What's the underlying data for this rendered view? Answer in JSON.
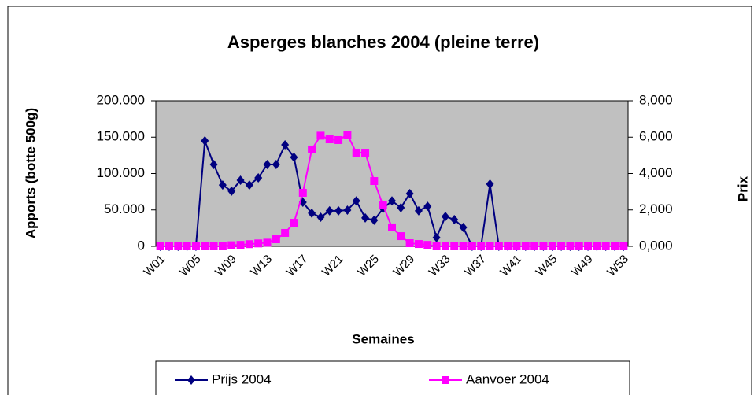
{
  "chart_data": {
    "type": "line",
    "title": "Asperges blanches 2004 (pleine terre)",
    "y_label": "Apports (botte 500g)",
    "y2_label": "Prix",
    "x_label": "Semaines",
    "categories": [
      "W01",
      null,
      null,
      null,
      "W05",
      null,
      null,
      null,
      "W09",
      null,
      null,
      null,
      "W13",
      null,
      null,
      null,
      "W17",
      null,
      null,
      null,
      "W21",
      null,
      null,
      null,
      "W25",
      null,
      null,
      null,
      "W29",
      null,
      null,
      null,
      "W33",
      null,
      null,
      null,
      "W37",
      null,
      null,
      null,
      "W41",
      null,
      null,
      null,
      "W45",
      null,
      null,
      null,
      "W49",
      null,
      null,
      null,
      "W53"
    ],
    "series": [
      {
        "name": "Prijs 2004",
        "color": "#000080",
        "marker": "diamond",
        "axis": "y2",
        "values": [
          0,
          0,
          0,
          0,
          0,
          5.8,
          4.5,
          3.37,
          3.03,
          3.63,
          3.37,
          3.76,
          4.5,
          4.5,
          5.58,
          4.89,
          2.42,
          1.82,
          1.6,
          1.95,
          1.95,
          1.99,
          2.5,
          1.56,
          1.43,
          2.08,
          2.5,
          2.12,
          2.9,
          1.95,
          2.2,
          0.48,
          1.64,
          1.47,
          1.04,
          0,
          0,
          3.42,
          0,
          0,
          0,
          0,
          0,
          0,
          0,
          0,
          0,
          0,
          0,
          0,
          0,
          0,
          0
        ]
      },
      {
        "name": "Aanvoer 2004",
        "color": "#ff00ff",
        "marker": "square",
        "axis": "y",
        "values": [
          0,
          0,
          0,
          0,
          0,
          0,
          0,
          0,
          1500,
          2000,
          3000,
          4000,
          5000,
          9700,
          18400,
          32400,
          73500,
          133000,
          152000,
          147000,
          146000,
          153500,
          128600,
          128600,
          89700,
          56200,
          26000,
          14000,
          4300,
          3200,
          2000,
          0,
          0,
          0,
          0,
          0,
          0,
          0,
          0,
          0,
          0,
          0,
          0,
          0,
          0,
          0,
          0,
          0,
          0,
          0,
          0,
          0,
          0
        ]
      }
    ],
    "ylim": [
      0,
      200000
    ],
    "yticks": [
      {
        "value": 0,
        "label": "0"
      },
      {
        "value": 50000,
        "label": "50.000"
      },
      {
        "value": 100000,
        "label": "100.000"
      },
      {
        "value": 150000,
        "label": "150.000"
      },
      {
        "value": 200000,
        "label": "200.000"
      }
    ],
    "y2lim": [
      0,
      8
    ],
    "y2ticks": [
      {
        "value": 0,
        "label": "0,000"
      },
      {
        "value": 2,
        "label": "2,000"
      },
      {
        "value": 4,
        "label": "4,000"
      },
      {
        "value": 6,
        "label": "6,000"
      },
      {
        "value": 8,
        "label": "8,000"
      }
    ],
    "grid": false,
    "legend": "bottom"
  }
}
